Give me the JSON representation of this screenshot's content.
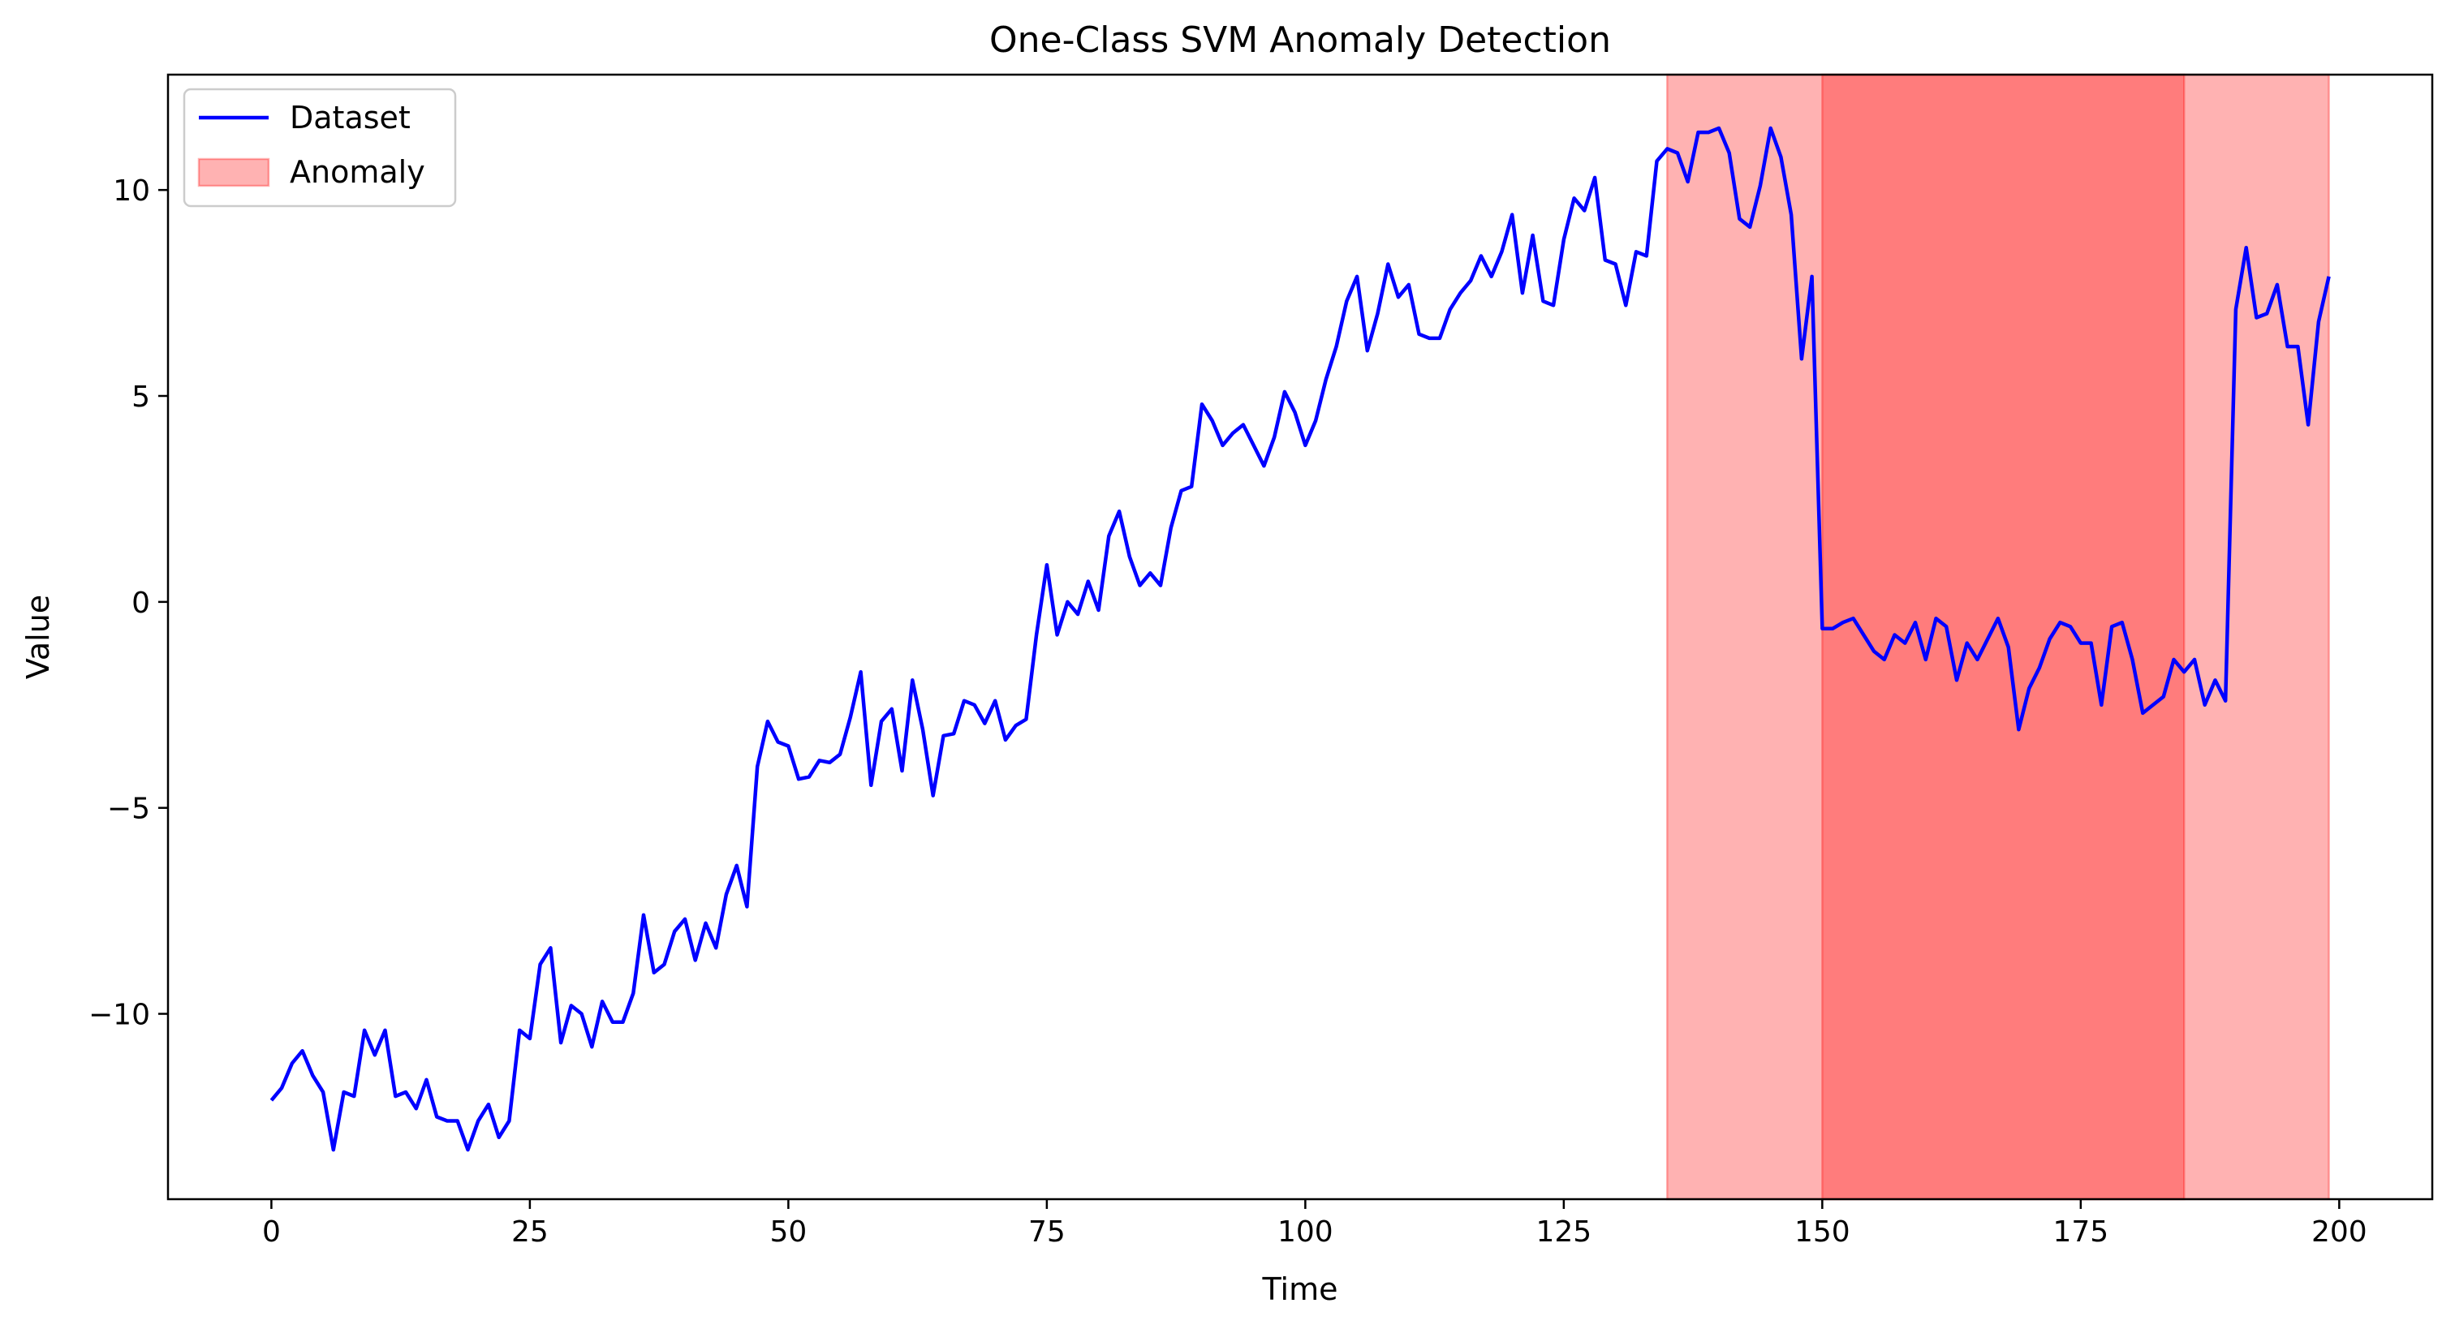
{
  "chart_data": {
    "type": "line",
    "title": "One-Class SVM Anomaly Detection",
    "xlabel": "Time",
    "ylabel": "Value",
    "xlim": [
      -10,
      209
    ],
    "ylim": [
      -14.5,
      12.8
    ],
    "x_ticks": [
      0,
      25,
      50,
      75,
      100,
      125,
      150,
      175,
      200
    ],
    "x_tick_labels": [
      "0",
      "25",
      "50",
      "75",
      "100",
      "125",
      "150",
      "175",
      "200"
    ],
    "y_ticks": [
      -10,
      -5,
      0,
      5,
      10
    ],
    "y_tick_labels": [
      "−10",
      "−5",
      "0",
      "5",
      "10"
    ],
    "grid": false,
    "legend": {
      "placement": "top-left",
      "entries": [
        {
          "label": "Dataset",
          "kind": "line",
          "color": "#0000ff"
        },
        {
          "label": "Anomaly",
          "kind": "patch",
          "color": "#ff0000"
        }
      ]
    },
    "series": [
      {
        "name": "Dataset",
        "color": "#0000ff",
        "x_start": 0,
        "x_step": 1,
        "values": [
          -12.1,
          -11.8,
          -11.2,
          -10.9,
          -11.5,
          -11.9,
          -13.3,
          -11.9,
          -12.0,
          -10.4,
          -11.0,
          -10.4,
          -12.0,
          -11.9,
          -12.3,
          -11.6,
          -12.5,
          -12.6,
          -12.6,
          -13.3,
          -12.6,
          -12.2,
          -13.0,
          -12.6,
          -10.4,
          -10.6,
          -8.8,
          -8.4,
          -10.7,
          -9.8,
          -10.0,
          -10.8,
          -9.7,
          -10.2,
          -10.2,
          -9.5,
          -7.6,
          -9.0,
          -8.8,
          -8.0,
          -7.7,
          -8.7,
          -7.8,
          -8.4,
          -7.1,
          -6.4,
          -7.4,
          -4.0,
          -2.9,
          -3.4,
          -3.5,
          -4.3,
          -4.25,
          -3.85,
          -3.9,
          -3.7,
          -2.8,
          -1.7,
          -4.45,
          -2.9,
          -2.6,
          -4.1,
          -1.9,
          -3.1,
          -4.7,
          -3.25,
          -3.2,
          -2.4,
          -2.5,
          -2.95,
          -2.4,
          -3.35,
          -3.0,
          -2.85,
          -0.8,
          0.9,
          -0.8,
          0.0,
          -0.3,
          0.5,
          -0.2,
          1.6,
          2.2,
          1.1,
          0.4,
          0.7,
          0.4,
          1.8,
          2.7,
          2.8,
          4.8,
          4.4,
          3.8,
          4.1,
          4.3,
          3.8,
          3.3,
          4.0,
          5.1,
          4.6,
          3.8,
          4.4,
          5.4,
          6.2,
          7.3,
          7.9,
          6.1,
          7.0,
          8.2,
          7.4,
          7.7,
          6.5,
          6.4,
          6.4,
          7.1,
          7.5,
          7.8,
          8.4,
          7.9,
          8.5,
          9.4,
          7.5,
          8.9,
          7.3,
          7.2,
          8.8,
          9.8,
          9.5,
          10.3,
          8.3,
          8.2,
          7.2,
          8.5,
          8.4,
          10.7,
          11.0,
          10.9,
          10.2,
          11.4,
          11.4,
          11.5,
          10.9,
          9.3,
          9.1,
          10.1,
          11.5,
          10.8,
          9.4,
          5.9,
          7.9,
          -0.65,
          -0.65,
          -0.5,
          -0.4,
          -0.8,
          -1.2,
          -1.4,
          -0.8,
          -1.0,
          -0.5,
          -1.4,
          -0.4,
          -0.6,
          -1.9,
          -1.0,
          -1.4,
          -0.9,
          -0.4,
          -1.1,
          -3.1,
          -2.1,
          -1.6,
          -0.9,
          -0.5,
          -0.6,
          -1.0,
          -1.0,
          -2.5,
          -0.6,
          -0.5,
          -1.4,
          -2.7,
          -2.5,
          -2.3,
          -1.4,
          -1.7,
          -1.4,
          -2.5,
          -1.9,
          -2.4,
          7.1,
          8.6,
          6.9,
          7.0,
          7.7,
          6.2,
          6.2,
          4.3,
          6.8,
          7.9
        ]
      }
    ],
    "anomaly_spans": [
      {
        "x0": 135,
        "x1": 185,
        "color": "#ff0000",
        "alpha": 0.3
      },
      {
        "x0": 150,
        "x1": 199,
        "color": "#ff0000",
        "alpha": 0.3
      }
    ]
  }
}
